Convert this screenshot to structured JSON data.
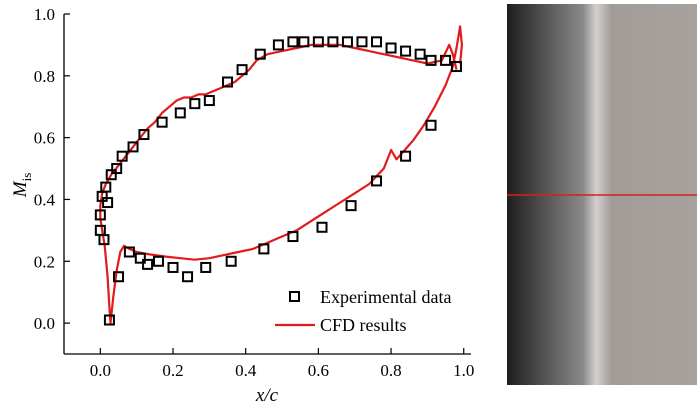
{
  "chart_data": {
    "type": "scatter",
    "title": "",
    "xlabel": "x/c",
    "ylabel_main": "M",
    "ylabel_sub": "is",
    "xlim": [
      -0.1,
      1.02
    ],
    "ylim": [
      -0.1,
      1.0
    ],
    "xticks": [
      "0.0",
      "0.2",
      "0.4",
      "0.6",
      "0.8",
      "1.0"
    ],
    "yticks": [
      "0.0",
      "0.2",
      "0.4",
      "0.6",
      "0.8",
      "1.0"
    ],
    "grid": false,
    "legend_position": "bottom-right",
    "series": [
      {
        "name": "Experimental data",
        "kind": "markers",
        "color": "#000000",
        "marker": "open-square",
        "points": [
          [
            0.0,
            0.3
          ],
          [
            0.0,
            0.35
          ],
          [
            0.005,
            0.41
          ],
          [
            0.015,
            0.44
          ],
          [
            0.02,
            0.39
          ],
          [
            0.03,
            0.48
          ],
          [
            0.045,
            0.5
          ],
          [
            0.06,
            0.54
          ],
          [
            0.09,
            0.57
          ],
          [
            0.12,
            0.61
          ],
          [
            0.17,
            0.65
          ],
          [
            0.22,
            0.68
          ],
          [
            0.26,
            0.71
          ],
          [
            0.3,
            0.72
          ],
          [
            0.35,
            0.78
          ],
          [
            0.39,
            0.82
          ],
          [
            0.44,
            0.87
          ],
          [
            0.49,
            0.9
          ],
          [
            0.53,
            0.91
          ],
          [
            0.56,
            0.91
          ],
          [
            0.6,
            0.91
          ],
          [
            0.64,
            0.91
          ],
          [
            0.68,
            0.91
          ],
          [
            0.72,
            0.91
          ],
          [
            0.76,
            0.91
          ],
          [
            0.8,
            0.89
          ],
          [
            0.84,
            0.88
          ],
          [
            0.88,
            0.87
          ],
          [
            0.91,
            0.85
          ],
          [
            0.95,
            0.85
          ],
          [
            0.98,
            0.83
          ],
          [
            0.01,
            0.27
          ],
          [
            0.025,
            0.01
          ],
          [
            0.05,
            0.15
          ],
          [
            0.08,
            0.23
          ],
          [
            0.11,
            0.21
          ],
          [
            0.13,
            0.19
          ],
          [
            0.16,
            0.2
          ],
          [
            0.2,
            0.18
          ],
          [
            0.24,
            0.15
          ],
          [
            0.29,
            0.18
          ],
          [
            0.36,
            0.2
          ],
          [
            0.45,
            0.24
          ],
          [
            0.53,
            0.28
          ],
          [
            0.61,
            0.31
          ],
          [
            0.69,
            0.38
          ],
          [
            0.76,
            0.46
          ],
          [
            0.84,
            0.54
          ],
          [
            0.91,
            0.64
          ]
        ]
      },
      {
        "name": "CFD results",
        "kind": "line",
        "color": "#e31a1c",
        "points": [
          [
            0.98,
            0.82
          ],
          [
            0.97,
            0.87
          ],
          [
            0.96,
            0.9
          ],
          [
            0.94,
            0.85
          ],
          [
            0.9,
            0.84
          ],
          [
            0.86,
            0.85
          ],
          [
            0.82,
            0.86
          ],
          [
            0.78,
            0.87
          ],
          [
            0.74,
            0.88
          ],
          [
            0.7,
            0.89
          ],
          [
            0.66,
            0.9
          ],
          [
            0.62,
            0.9
          ],
          [
            0.58,
            0.9
          ],
          [
            0.54,
            0.89
          ],
          [
            0.5,
            0.88
          ],
          [
            0.46,
            0.87
          ],
          [
            0.43,
            0.85
          ],
          [
            0.41,
            0.82
          ],
          [
            0.39,
            0.8
          ],
          [
            0.37,
            0.78
          ],
          [
            0.35,
            0.77
          ],
          [
            0.33,
            0.76
          ],
          [
            0.31,
            0.75
          ],
          [
            0.29,
            0.74
          ],
          [
            0.27,
            0.74
          ],
          [
            0.25,
            0.73
          ],
          [
            0.23,
            0.73
          ],
          [
            0.21,
            0.72
          ],
          [
            0.19,
            0.7
          ],
          [
            0.17,
            0.68
          ],
          [
            0.15,
            0.65
          ],
          [
            0.13,
            0.63
          ],
          [
            0.11,
            0.6
          ],
          [
            0.09,
            0.57
          ],
          [
            0.07,
            0.54
          ],
          [
            0.05,
            0.51
          ],
          [
            0.03,
            0.48
          ],
          [
            0.015,
            0.45
          ],
          [
            0.005,
            0.42
          ],
          [
            0.0,
            0.38
          ],
          [
            0.0,
            0.34
          ],
          [
            0.005,
            0.3
          ],
          [
            0.012,
            0.25
          ],
          [
            0.02,
            0.15
          ],
          [
            0.025,
            0.05
          ],
          [
            0.028,
            0.0
          ],
          [
            0.035,
            0.08
          ],
          [
            0.045,
            0.17
          ],
          [
            0.055,
            0.23
          ],
          [
            0.065,
            0.25
          ],
          [
            0.08,
            0.24
          ],
          [
            0.1,
            0.23
          ],
          [
            0.12,
            0.225
          ],
          [
            0.15,
            0.22
          ],
          [
            0.18,
            0.215
          ],
          [
            0.22,
            0.21
          ],
          [
            0.26,
            0.205
          ],
          [
            0.3,
            0.21
          ],
          [
            0.34,
            0.22
          ],
          [
            0.38,
            0.23
          ],
          [
            0.42,
            0.24
          ],
          [
            0.46,
            0.26
          ],
          [
            0.5,
            0.28
          ],
          [
            0.54,
            0.3
          ],
          [
            0.58,
            0.33
          ],
          [
            0.62,
            0.36
          ],
          [
            0.66,
            0.39
          ],
          [
            0.7,
            0.42
          ],
          [
            0.74,
            0.45
          ],
          [
            0.78,
            0.5
          ],
          [
            0.8,
            0.56
          ],
          [
            0.815,
            0.53
          ],
          [
            0.83,
            0.55
          ],
          [
            0.86,
            0.59
          ],
          [
            0.89,
            0.64
          ],
          [
            0.92,
            0.7
          ],
          [
            0.95,
            0.77
          ],
          [
            0.97,
            0.83
          ],
          [
            0.98,
            0.89
          ],
          [
            0.99,
            0.96
          ],
          [
            0.995,
            0.9
          ],
          [
            0.99,
            0.84
          ]
        ]
      }
    ]
  },
  "side_panel": {
    "colors": [
      "#1e1e1e",
      "#8a8a8a",
      "#d4cfcf",
      "#a19c98",
      "#a8a29f"
    ],
    "line_color": "#d81e1e"
  }
}
